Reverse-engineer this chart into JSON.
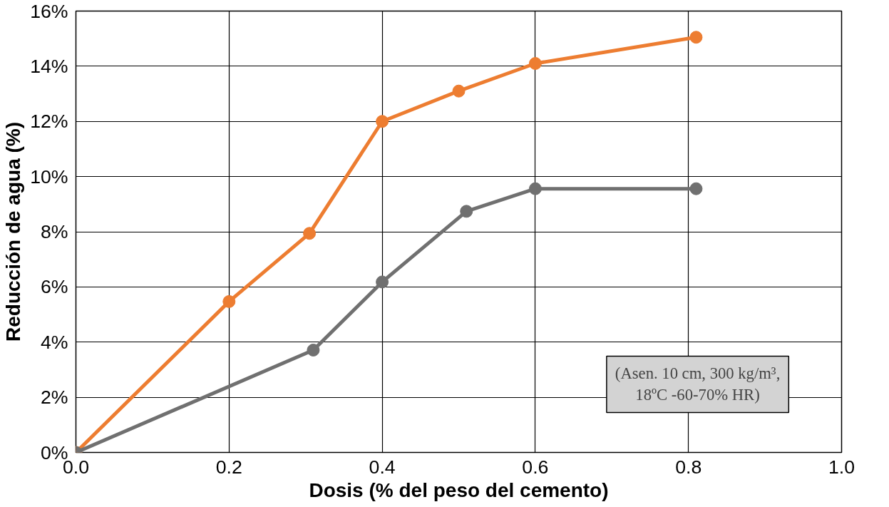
{
  "chart_data": {
    "type": "line",
    "xlabel": "Dosis (% del peso del cemento)",
    "ylabel": "Reducción de agua (%)",
    "xlim": [
      0,
      1.0
    ],
    "ylim": [
      0,
      16
    ],
    "xticks": [
      {
        "value": 0,
        "label": "0.0"
      },
      {
        "value": 0.2,
        "label": "0.2"
      },
      {
        "value": 0.4,
        "label": "0.4"
      },
      {
        "value": 0.6,
        "label": "0.6"
      },
      {
        "value": 0.8,
        "label": "0.8"
      },
      {
        "value": 1.0,
        "label": "1.0"
      }
    ],
    "yticks": [
      {
        "value": 0,
        "label": "0%"
      },
      {
        "value": 2,
        "label": "2%"
      },
      {
        "value": 4,
        "label": "4%"
      },
      {
        "value": 6,
        "label": "6%"
      },
      {
        "value": 8,
        "label": "8%"
      },
      {
        "value": 10,
        "label": "10%"
      },
      {
        "value": 12,
        "label": "12%"
      },
      {
        "value": 14,
        "label": "14%"
      },
      {
        "value": 16,
        "label": "16%"
      }
    ],
    "grid": true,
    "marker": "circle",
    "line_style": "solid",
    "series": [
      {
        "color": "#ed7d31",
        "x": [
          0,
          0.2,
          0.305,
          0.4,
          0.5,
          0.6,
          0.81
        ],
        "values": [
          0,
          5.47,
          7.94,
          12.0,
          13.1,
          14.1,
          15.05
        ]
      },
      {
        "color": "#707070",
        "x": [
          0,
          0.31,
          0.4,
          0.51,
          0.6,
          0.81
        ],
        "values": [
          0,
          3.71,
          6.18,
          8.74,
          9.56,
          9.56
        ]
      }
    ],
    "annotations": [
      "(Asen. 10 cm, 300 kg/m³,\n18ºC -60-70% HR)"
    ]
  }
}
